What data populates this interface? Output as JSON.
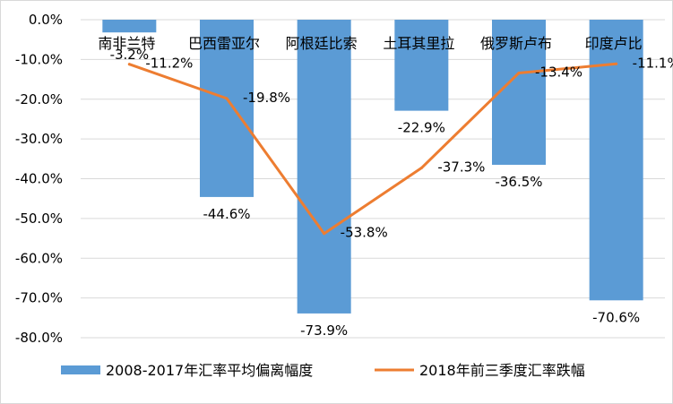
{
  "chart_data": {
    "type": "bar",
    "categories": [
      "南非兰特",
      "巴西雷亚尔",
      "阿根廷比索",
      "土耳其里拉",
      "俄罗斯卢布",
      "印度卢比"
    ],
    "series": [
      {
        "name": "2008-2017年汇率平均偏离幅度",
        "type": "bar",
        "values": [
          -3.2,
          -44.6,
          -73.9,
          -22.9,
          -36.5,
          -70.6
        ],
        "labels": [
          "-3.2%",
          "-44.6%",
          "-73.9%",
          "-22.9%",
          "-36.5%",
          "-70.6%"
        ],
        "color": "#5b9bd5"
      },
      {
        "name": "2018年前三季度汇率跌幅",
        "type": "line",
        "values": [
          -11.2,
          -19.8,
          -53.8,
          -37.3,
          -13.4,
          -11.1
        ],
        "labels": [
          "-11.2%",
          "-19.8%",
          "-53.8%",
          "-37.3%",
          "-13.4%",
          "-11.1%"
        ],
        "color": "#ed7d31"
      }
    ],
    "y_ticks": [
      "0.0%",
      "-10.0%",
      "-20.0%",
      "-30.0%",
      "-40.0%",
      "-50.0%",
      "-60.0%",
      "-70.0%",
      "-80.0%"
    ],
    "ylim": [
      -80,
      0
    ],
    "grid": true,
    "legend": "bottom"
  }
}
